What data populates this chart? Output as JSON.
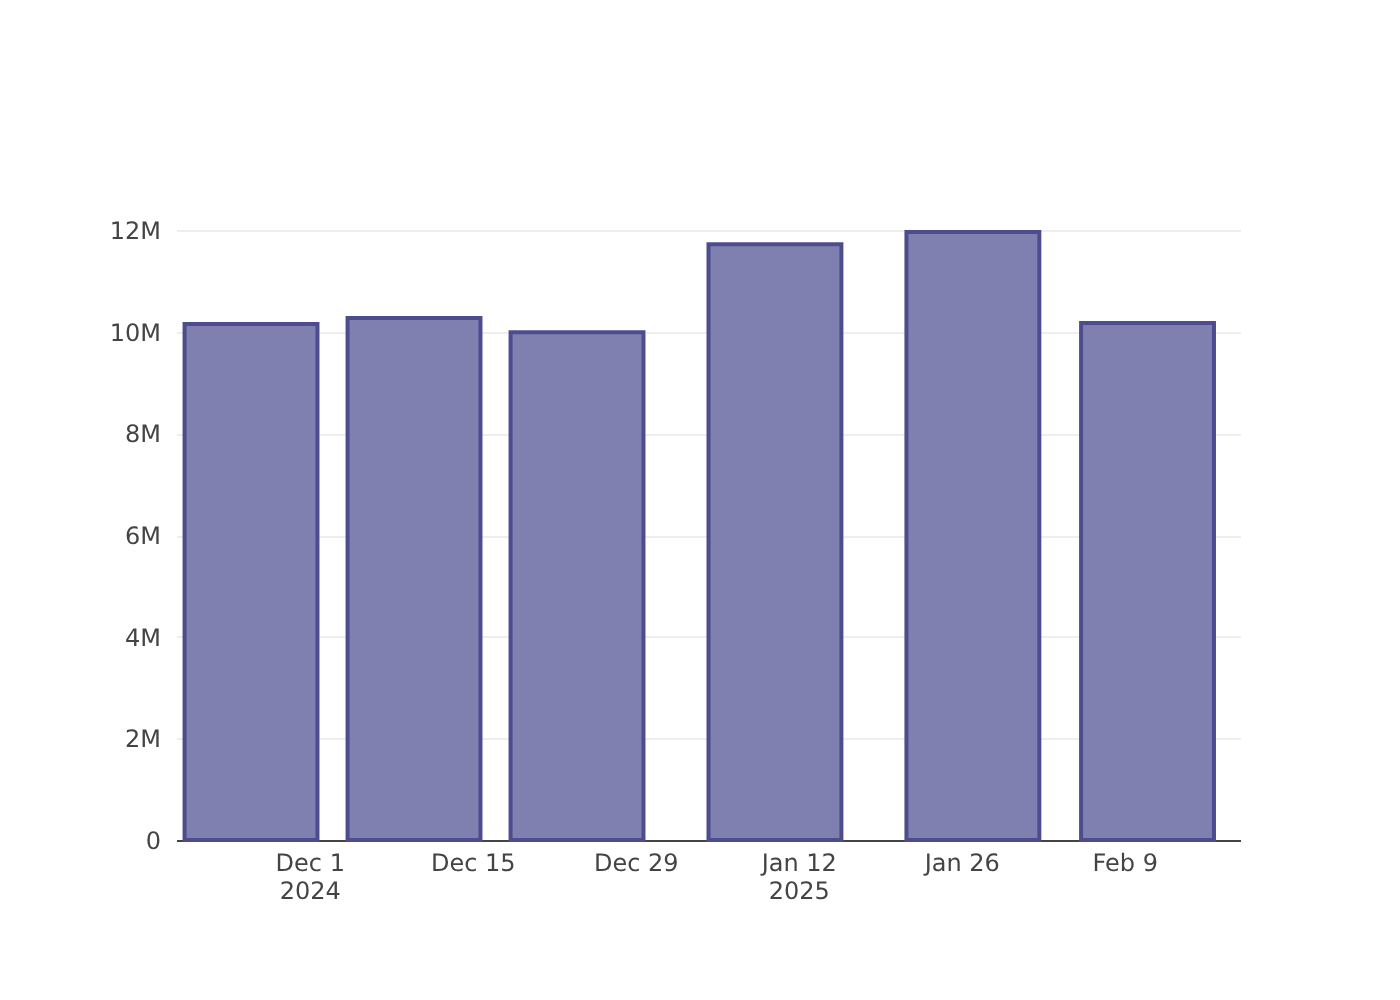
{
  "chart_data": {
    "type": "bar",
    "x": [
      "2024-11-26",
      "2024-12-10",
      "2024-12-24",
      "2025-01-10",
      "2025-01-27",
      "2025-02-11"
    ],
    "series": [
      {
        "color": "#7f7fb0",
        "values": [
          10150000,
          10270000,
          9990000,
          11720000,
          11960000,
          10170000
        ]
      }
    ],
    "xlim": [
      "2024-11-20T10:00",
      "2025-02-18T02:00"
    ],
    "xticks": [
      {
        "value": "2024-12-01",
        "label": "Dec 1\n2024"
      },
      {
        "value": "2024-12-15",
        "label": "Dec 15"
      },
      {
        "value": "2024-12-29",
        "label": "Dec 29"
      },
      {
        "value": "2025-01-12",
        "label": "Jan 12\n2025"
      },
      {
        "value": "2025-01-26",
        "label": "Jan 26"
      },
      {
        "value": "2025-02-09",
        "label": "Feb 9"
      }
    ],
    "ylim": [
      0,
      12000000
    ],
    "yticks": [
      {
        "value": 0,
        "label": "0"
      },
      {
        "value": 2000000,
        "label": "2M"
      },
      {
        "value": 4000000,
        "label": "4M"
      },
      {
        "value": 6000000,
        "label": "6M"
      },
      {
        "value": 8000000,
        "label": "8M"
      },
      {
        "value": 10000000,
        "label": "10M"
      },
      {
        "value": 12000000,
        "label": "12M"
      }
    ],
    "grid": "y"
  }
}
